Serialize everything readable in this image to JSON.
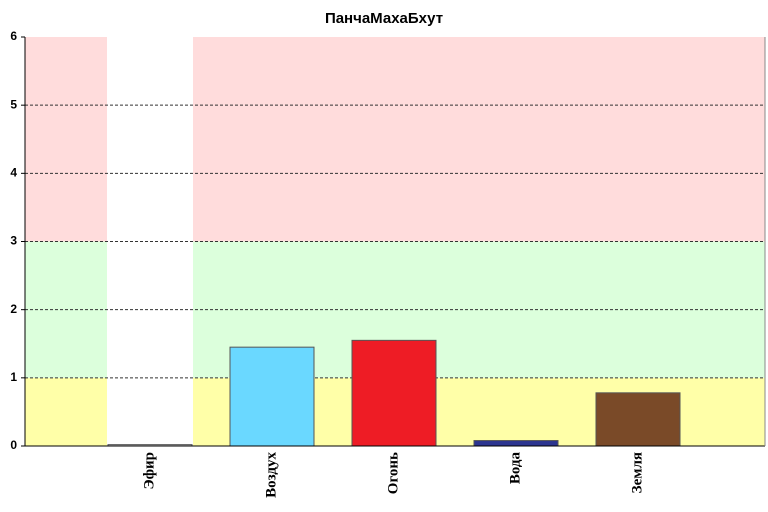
{
  "chart_data": {
    "type": "bar",
    "title": "ПанчаМахаБхут",
    "categories": [
      "Эфир",
      "Воздух",
      "Огонь",
      "Вода",
      "Земля"
    ],
    "series": [
      {
        "name": "ПанчаМахаБхут",
        "values": [
          0.02,
          1.45,
          1.55,
          0.08,
          0.78
        ]
      }
    ],
    "colors": [
      "#d8d8d8",
      "#6ad8ff",
      "#ee1c25",
      "#2c3590",
      "#7a4a28"
    ],
    "bands": [
      {
        "from": 0,
        "to": 1,
        "color": "#ffffa8"
      },
      {
        "from": 1,
        "to": 3,
        "color": "#dcffdc"
      },
      {
        "from": 3,
        "to": 6,
        "color": "#ffdcdc"
      }
    ],
    "ylim": [
      0,
      6
    ],
    "yticks": [
      0,
      1,
      2,
      3,
      4,
      5,
      6
    ],
    "grid": true
  }
}
